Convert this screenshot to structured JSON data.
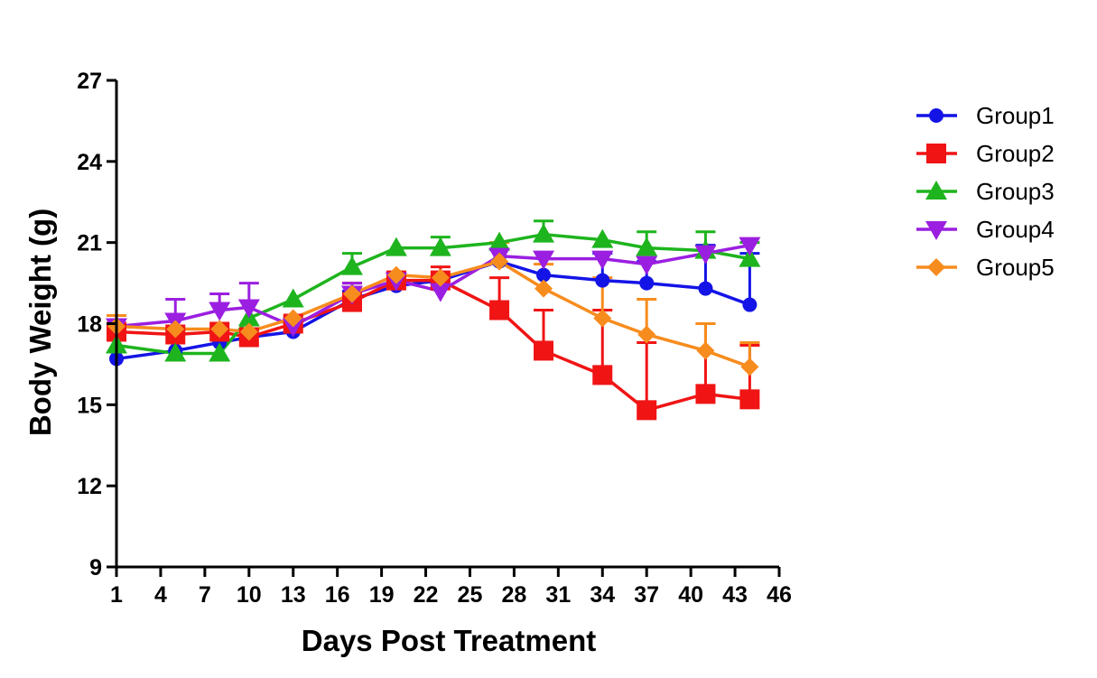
{
  "chart_data": {
    "type": "line",
    "xlabel": "Days Post Treatment",
    "ylabel": "Body Weight (g)",
    "xlim": [
      1,
      46
    ],
    "ylim": [
      9,
      27
    ],
    "x_ticks": [
      1,
      4,
      7,
      10,
      13,
      16,
      19,
      22,
      25,
      28,
      31,
      34,
      37,
      40,
      43,
      46
    ],
    "y_ticks": [
      9,
      12,
      15,
      18,
      21,
      24,
      27
    ],
    "x_tick_labels": [
      "1",
      "4",
      "7",
      "10",
      "13",
      "16",
      "19",
      "22",
      "25",
      "28",
      "31",
      "34",
      "37",
      "40",
      "43",
      "46"
    ],
    "y_tick_labels": [
      "9",
      "12",
      "15",
      "18",
      "21",
      "24",
      "27"
    ],
    "grid": false,
    "legend_position": "top-right",
    "series": [
      {
        "name": "Group1",
        "color": "#1414e6",
        "marker": "circle",
        "x": [
          1,
          5,
          8,
          10,
          13,
          17,
          20,
          23,
          27,
          30,
          34,
          37,
          41,
          44
        ],
        "y": [
          16.7,
          17.0,
          17.3,
          17.5,
          17.7,
          18.9,
          19.4,
          19.6,
          20.3,
          19.8,
          19.6,
          19.5,
          19.3,
          18.7
        ],
        "err": [
          0.0,
          0.0,
          0.0,
          0.3,
          0.0,
          0.3,
          0.0,
          0.0,
          0.0,
          0.0,
          1.0,
          0.8,
          1.6,
          1.9
        ]
      },
      {
        "name": "Group2",
        "color": "#f01414",
        "marker": "square",
        "x": [
          1,
          5,
          8,
          10,
          13,
          17,
          20,
          23,
          27,
          30,
          34,
          37,
          41,
          44
        ],
        "y": [
          17.7,
          17.6,
          17.7,
          17.5,
          18.0,
          18.8,
          19.6,
          19.6,
          18.5,
          17.0,
          16.1,
          14.8,
          15.4,
          15.2
        ],
        "err": [
          0.0,
          0.0,
          0.0,
          0.0,
          0.0,
          0.7,
          0.0,
          0.5,
          1.2,
          1.5,
          2.4,
          2.5,
          2.6,
          2.0
        ]
      },
      {
        "name": "Group3",
        "color": "#1eb41e",
        "marker": "triangle-up",
        "x": [
          1,
          5,
          8,
          10,
          13,
          17,
          20,
          23,
          27,
          30,
          34,
          37,
          41,
          44
        ],
        "y": [
          17.2,
          16.9,
          16.9,
          18.2,
          18.9,
          20.1,
          20.8,
          20.8,
          21.0,
          21.3,
          21.1,
          20.8,
          20.7,
          20.4
        ],
        "err": [
          0.0,
          0.0,
          0.0,
          0.0,
          0.0,
          0.5,
          0.0,
          0.4,
          0.0,
          0.5,
          0.0,
          0.6,
          0.7,
          0.6
        ]
      },
      {
        "name": "Group4",
        "color": "#9b1fe0",
        "marker": "triangle-down",
        "x": [
          1,
          5,
          8,
          10,
          13,
          17,
          20,
          23,
          27,
          30,
          34,
          37,
          41,
          44
        ],
        "y": [
          17.9,
          18.1,
          18.5,
          18.6,
          17.9,
          19.1,
          19.6,
          19.2,
          20.5,
          20.4,
          20.4,
          20.2,
          20.6,
          20.9
        ],
        "err": [
          0.0,
          0.8,
          0.6,
          0.9,
          0.0,
          0.4,
          0.0,
          0.4,
          0.0,
          0.0,
          0.0,
          0.0,
          0.0,
          0.0
        ]
      },
      {
        "name": "Group5",
        "color": "#f78c1e",
        "marker": "diamond",
        "x": [
          1,
          5,
          8,
          10,
          13,
          17,
          20,
          23,
          27,
          30,
          34,
          37,
          41,
          44
        ],
        "y": [
          17.9,
          17.8,
          17.8,
          17.7,
          18.2,
          19.1,
          19.8,
          19.7,
          20.3,
          19.3,
          18.2,
          17.6,
          17.0,
          16.4
        ],
        "err": [
          0.4,
          0.0,
          0.0,
          0.0,
          0.0,
          0.0,
          0.0,
          0.0,
          0.7,
          0.9,
          1.5,
          1.3,
          1.0,
          0.9
        ]
      }
    ]
  }
}
